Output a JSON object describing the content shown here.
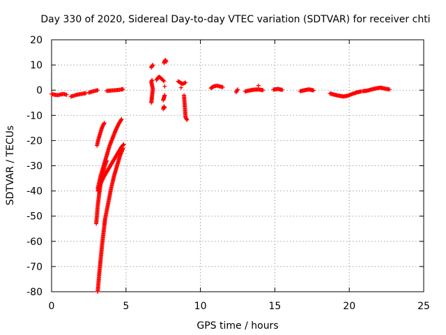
{
  "chart_data": {
    "type": "scatter",
    "title": "Day 330 of 2020, Sidereal Day-to-day VTEC variation (SDTVAR) for receiver chti",
    "xlabel": "GPS time / hours",
    "ylabel": "SDTVAR / TECUs",
    "xlim": [
      0,
      25
    ],
    "ylim": [
      -80,
      20
    ],
    "xticks": [
      0,
      5,
      10,
      15,
      20,
      25
    ],
    "yticks": [
      -80,
      -70,
      -60,
      -50,
      -40,
      -30,
      -20,
      -10,
      0,
      10,
      20
    ],
    "grid": true,
    "marker": "+",
    "color": "#ff0000",
    "series": [
      {
        "name": "SDTVAR",
        "segments": [
          {
            "x": [
              0.0,
              0.2,
              0.4,
              0.6,
              0.8,
              1.0
            ],
            "y": [
              -1.5,
              -1.8,
              -2.0,
              -1.7,
              -1.5,
              -1.8
            ]
          },
          {
            "x": [
              1.3,
              1.5,
              1.7,
              1.9,
              2.1,
              2.3
            ],
            "y": [
              -2.5,
              -2.2,
              -1.8,
              -1.6,
              -1.4,
              -1.2
            ]
          },
          {
            "x": [
              2.5,
              2.7,
              2.9,
              3.1
            ],
            "y": [
              -1.0,
              -0.6,
              -0.3,
              0.0
            ]
          },
          {
            "x": [
              3.7,
              3.9,
              4.1,
              4.3,
              4.5,
              4.7,
              4.8
            ],
            "y": [
              -0.3,
              -0.2,
              -0.1,
              0.0,
              0.1,
              0.3,
              0.4
            ]
          },
          {
            "x": [
              3.05,
              3.15,
              3.25,
              3.35,
              3.45,
              3.55
            ],
            "y": [
              -22,
              -19.5,
              -17.5,
              -15.5,
              -14,
              -13
            ]
          },
          {
            "x": [
              3.1,
              3.3,
              3.5,
              3.7,
              3.9,
              4.1,
              4.3,
              4.5,
              4.7
            ],
            "y": [
              -39,
              -34,
              -30,
              -26,
              -22,
              -19,
              -16,
              -13.5,
              -11.5
            ]
          },
          {
            "x": [
              3.0,
              3.1,
              3.2,
              3.3,
              3.4,
              3.5,
              3.6,
              3.7
            ],
            "y": [
              -53,
              -46,
              -41,
              -37,
              -34,
              -31.5,
              -29.5,
              -28
            ]
          },
          {
            "x": [
              3.1,
              3.3,
              3.5,
              3.7,
              3.9,
              4.1,
              4.3,
              4.5,
              4.7,
              4.85
            ],
            "y": [
              -40,
              -37,
              -34.5,
              -32.5,
              -30.5,
              -28.5,
              -26.5,
              -24.5,
              -22.5,
              -21.5
            ]
          },
          {
            "x": [
              3.1,
              3.2,
              3.3,
              3.4,
              3.5,
              3.6,
              3.8,
              4.0,
              4.2,
              4.4,
              4.6,
              4.8
            ],
            "y": [
              -80,
              -73,
              -67,
              -61,
              -56,
              -51,
              -45,
              -39,
              -34,
              -30,
              -26,
              -23
            ]
          },
          {
            "x": [
              6.7,
              6.75,
              6.8
            ],
            "y": [
              9,
              9.6,
              10
            ]
          },
          {
            "x": [
              6.7,
              6.75,
              6.8,
              6.7,
              6.75
            ],
            "y": [
              -5,
              -2.3,
              0.5,
              3.3,
              4
            ]
          },
          {
            "x": [
              7.05,
              7.15,
              7.25,
              7.35,
              7.45,
              7.55
            ],
            "y": [
              4,
              5,
              5.3,
              4.7,
              4.2,
              3.6
            ]
          },
          {
            "x": [
              7.55,
              7.6,
              7.65,
              7.7
            ],
            "y": [
              10.8,
              11.5,
              12,
              11.2
            ]
          },
          {
            "x": [
              7.5,
              7.55,
              7.6
            ],
            "y": [
              -7.5,
              -6.5,
              -7.0
            ]
          },
          {
            "x": [
              7.5,
              7.55,
              7.6
            ],
            "y": [
              -4,
              -3,
              -2
            ]
          },
          {
            "x": [
              7.6
            ],
            "y": [
              1.5
            ]
          },
          {
            "x": [
              8.5,
              8.65,
              8.8,
              9.0
            ],
            "y": [
              3.5,
              3.0,
              2.5,
              3.0
            ]
          },
          {
            "x": [
              8.7
            ],
            "y": [
              1.0
            ]
          },
          {
            "x": [
              8.9,
              9.0,
              9.1
            ],
            "y": [
              -2,
              -10.8,
              -11.8
            ]
          },
          {
            "x": [
              10.7,
              10.9,
              11.1,
              11.3,
              11.5
            ],
            "y": [
              0.8,
              1.5,
              1.8,
              1.5,
              1.2
            ]
          },
          {
            "x": [
              12.4,
              12.5
            ],
            "y": [
              -0.8,
              0.3
            ]
          },
          {
            "x": [
              13.0,
              13.3,
              13.6,
              13.9,
              14.2
            ],
            "y": [
              -0.5,
              -0.1,
              0.2,
              0.3,
              0.0
            ]
          },
          {
            "x": [
              13.9
            ],
            "y": [
              1.8
            ]
          },
          {
            "x": [
              14.9,
              15.2,
              15.5
            ],
            "y": [
              0.2,
              0.5,
              0.1
            ]
          },
          {
            "x": [
              16.7,
              17.0,
              17.3,
              17.6
            ],
            "y": [
              -0.4,
              0.0,
              0.3,
              -0.1
            ]
          },
          {
            "x": [
              18.7,
              19.0,
              19.3,
              19.6,
              19.9,
              20.2,
              20.5,
              20.8
            ],
            "y": [
              -1.3,
              -1.8,
              -2.2,
              -2.5,
              -2.2,
              -1.5,
              -0.9,
              -0.5
            ]
          },
          {
            "x": [
              20.9,
              21.2,
              21.5,
              21.8,
              22.1,
              22.4,
              22.7
            ],
            "y": [
              -0.4,
              -0.2,
              0.3,
              0.7,
              1.0,
              0.6,
              0.3
            ]
          }
        ]
      }
    ]
  }
}
